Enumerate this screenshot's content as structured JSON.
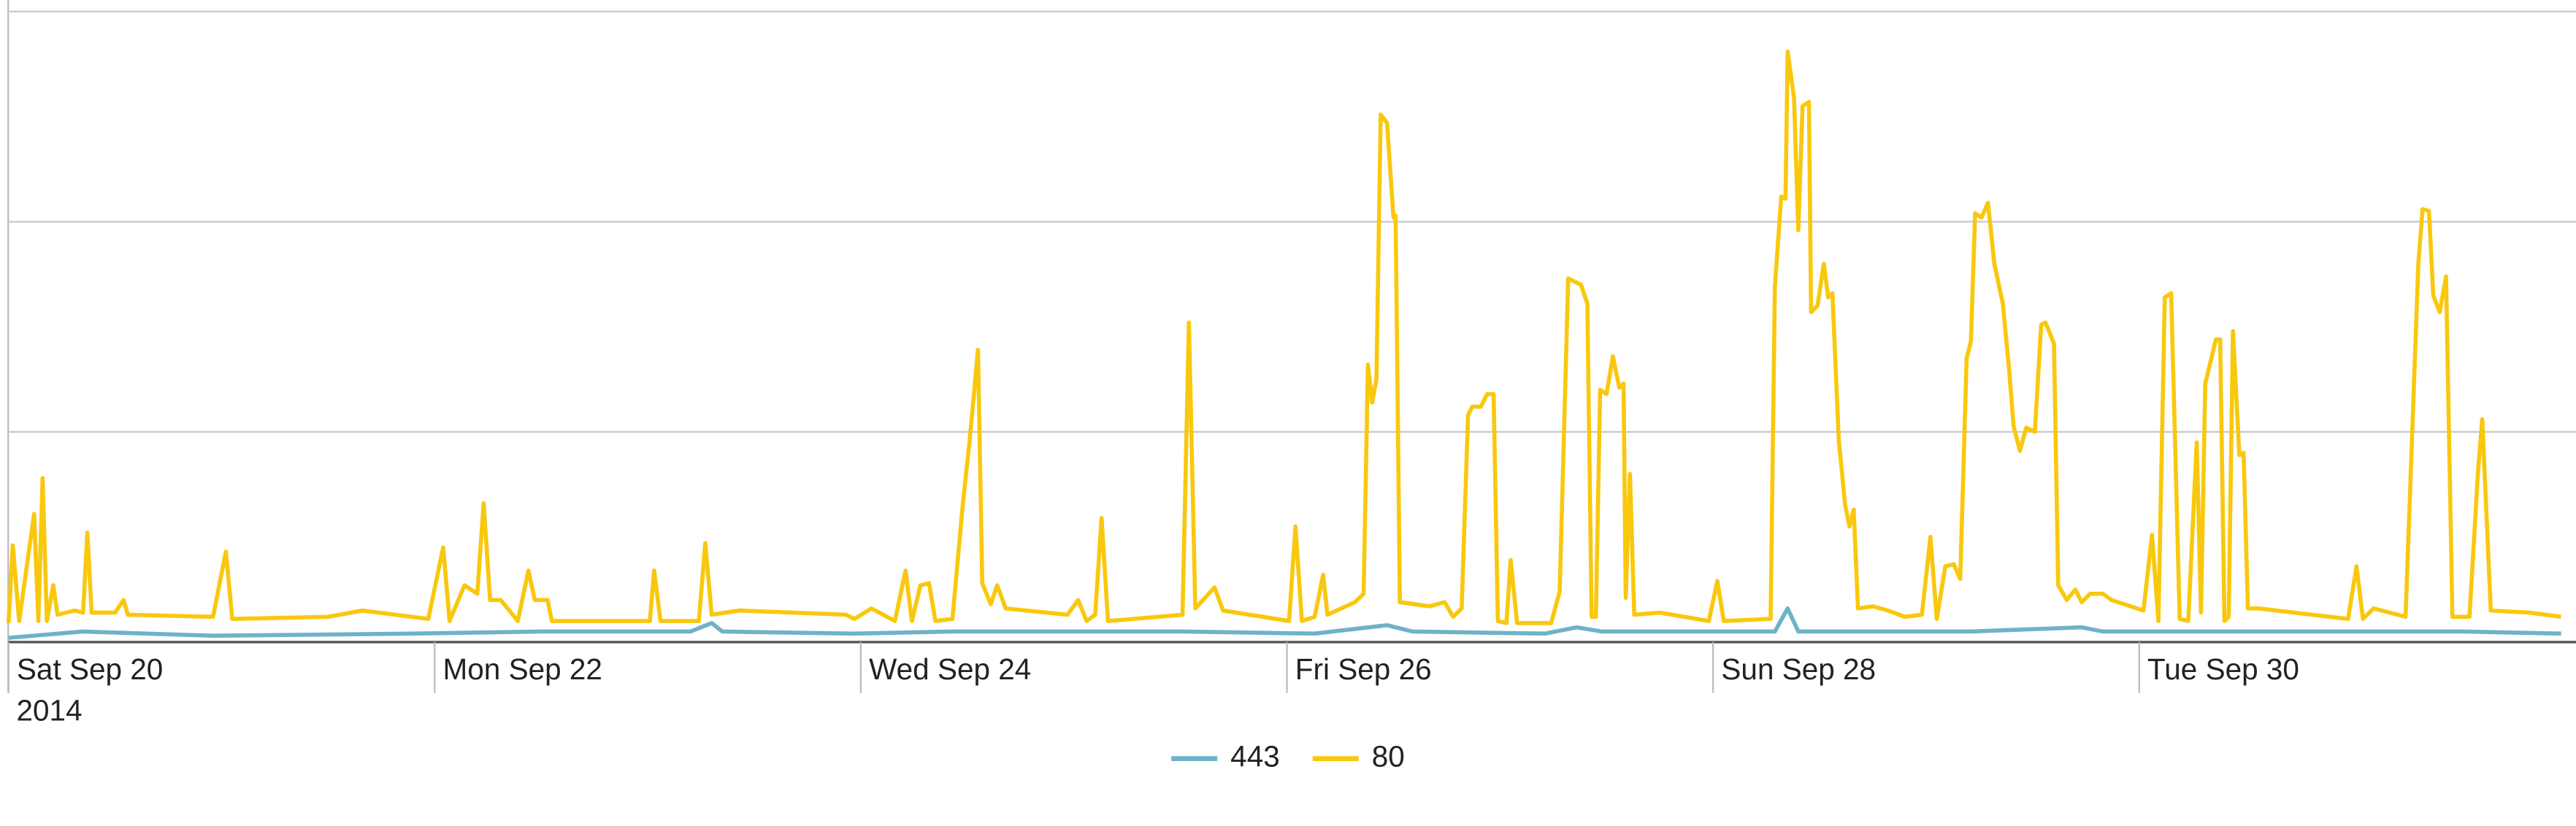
{
  "chart_data": {
    "type": "line",
    "xlim": [
      -0.04,
      12.05
    ],
    "xticks": [
      {
        "value": 0,
        "label": "Sat Sep 20"
      },
      {
        "value": 2,
        "label": "Mon Sep 22"
      },
      {
        "value": 4,
        "label": "Wed Sep 24"
      },
      {
        "value": 6,
        "label": "Fri Sep 26"
      },
      {
        "value": 8,
        "label": "Sun Sep 28"
      },
      {
        "value": 10,
        "label": "Tue Sep 30"
      }
    ],
    "x_year_label": "2014",
    "ylim": [
      0,
      3
    ],
    "yticks": [
      1,
      2,
      3
    ],
    "grid": true,
    "legend": "bottom",
    "series": [
      {
        "name": "443",
        "color": "#6db3c7",
        "x": [
          0.0,
          0.35,
          0.96,
          1.89,
          2.51,
          3.2,
          3.3,
          3.35,
          3.97,
          4.43,
          5.51,
          6.13,
          6.47,
          6.59,
          7.21,
          7.36,
          7.48,
          7.75,
          8.29,
          8.35,
          8.4,
          9.21,
          9.73,
          9.83,
          10.6,
          11.52,
          11.98
        ],
        "values": [
          0.02,
          0.05,
          0.03,
          0.04,
          0.05,
          0.05,
          0.09,
          0.05,
          0.04,
          0.05,
          0.05,
          0.04,
          0.08,
          0.05,
          0.04,
          0.07,
          0.05,
          0.05,
          0.05,
          0.16,
          0.05,
          0.05,
          0.07,
          0.05,
          0.05,
          0.05,
          0.04
        ]
      },
      {
        "name": "80",
        "color": "#f9c80e",
        "x": [
          0.0,
          0.02,
          0.05,
          0.12,
          0.14,
          0.16,
          0.18,
          0.21,
          0.23,
          0.31,
          0.35,
          0.37,
          0.39,
          0.5,
          0.54,
          0.56,
          0.96,
          1.02,
          1.05,
          1.5,
          1.66,
          1.97,
          2.04,
          2.07,
          2.14,
          2.2,
          2.23,
          2.26,
          2.31,
          2.39,
          2.44,
          2.47,
          2.53,
          2.55,
          3.01,
          3.03,
          3.06,
          3.24,
          3.27,
          3.3,
          3.43,
          3.93,
          3.97,
          4.05,
          4.16,
          4.21,
          4.24,
          4.28,
          4.32,
          4.35,
          4.43,
          4.48,
          4.51,
          4.55,
          4.57,
          4.61,
          4.64,
          4.68,
          4.97,
          5.02,
          5.06,
          5.1,
          5.13,
          5.16,
          5.51,
          5.54,
          5.57,
          5.66,
          5.7,
          6.01,
          6.04,
          6.07,
          6.13,
          6.17,
          6.19,
          6.32,
          6.36,
          6.38,
          6.4,
          6.42,
          6.44,
          6.47,
          6.5,
          6.51,
          6.53,
          6.67,
          6.74,
          6.78,
          6.82,
          6.85,
          6.87,
          6.91,
          6.94,
          6.97,
          6.99,
          7.03,
          7.05,
          7.08,
          7.24,
          7.28,
          7.32,
          7.38,
          7.41,
          7.43,
          7.45,
          7.47,
          7.5,
          7.53,
          7.56,
          7.58,
          7.59,
          7.61,
          7.63,
          7.75,
          7.98,
          8.02,
          8.05,
          8.27,
          8.29,
          8.32,
          8.34,
          8.35,
          8.38,
          8.4,
          8.42,
          8.45,
          8.46,
          8.49,
          8.52,
          8.54,
          8.56,
          8.59,
          8.62,
          8.64,
          8.66,
          8.68,
          8.75,
          8.82,
          8.9,
          8.98,
          9.02,
          9.05,
          9.09,
          9.13,
          9.16,
          9.19,
          9.21,
          9.23,
          9.26,
          9.29,
          9.32,
          9.36,
          9.39,
          9.41,
          9.44,
          9.47,
          9.51,
          9.54,
          9.56,
          9.6,
          9.62,
          9.66,
          9.7,
          9.73,
          9.77,
          9.83,
          9.87,
          10.02,
          10.06,
          10.09,
          10.12,
          10.15,
          10.19,
          10.23,
          10.27,
          10.29,
          10.31,
          10.36,
          10.38,
          10.4,
          10.42,
          10.44,
          10.47,
          10.49,
          10.51,
          10.56,
          10.98,
          11.02,
          11.05,
          11.1,
          11.25,
          11.31,
          11.33,
          11.36,
          11.38,
          11.41,
          11.44,
          11.47,
          11.55,
          11.59,
          11.61,
          11.65,
          11.83,
          11.98
        ],
        "values": [
          0.09,
          0.46,
          0.1,
          0.61,
          0.1,
          0.78,
          0.1,
          0.27,
          0.13,
          0.15,
          0.14,
          0.52,
          0.14,
          0.14,
          0.2,
          0.13,
          0.12,
          0.43,
          0.11,
          0.12,
          0.15,
          0.11,
          0.45,
          0.1,
          0.27,
          0.23,
          0.66,
          0.2,
          0.2,
          0.1,
          0.34,
          0.2,
          0.2,
          0.1,
          0.1,
          0.34,
          0.1,
          0.1,
          0.47,
          0.13,
          0.15,
          0.13,
          0.11,
          0.16,
          0.1,
          0.34,
          0.1,
          0.27,
          0.28,
          0.1,
          0.11,
          0.67,
          0.95,
          1.39,
          0.28,
          0.18,
          0.27,
          0.16,
          0.13,
          0.2,
          0.1,
          0.13,
          0.59,
          0.1,
          0.13,
          1.52,
          0.16,
          0.26,
          0.15,
          0.1,
          0.55,
          0.1,
          0.12,
          0.32,
          0.13,
          0.19,
          0.23,
          1.32,
          1.14,
          1.25,
          2.51,
          2.47,
          2.02,
          2.03,
          0.19,
          0.17,
          0.19,
          0.12,
          0.16,
          1.08,
          1.12,
          1.12,
          1.18,
          1.18,
          0.1,
          0.09,
          0.39,
          0.09,
          0.09,
          0.24,
          1.73,
          1.7,
          1.61,
          0.12,
          0.12,
          1.2,
          1.18,
          1.36,
          1.21,
          1.23,
          0.21,
          0.8,
          0.13,
          0.14,
          0.1,
          0.29,
          0.1,
          0.11,
          1.69,
          2.12,
          2.11,
          2.81,
          2.59,
          1.96,
          2.55,
          2.57,
          1.57,
          1.6,
          1.8,
          1.64,
          1.66,
          0.96,
          0.65,
          0.55,
          0.63,
          0.16,
          0.17,
          0.15,
          0.12,
          0.13,
          0.5,
          0.11,
          0.36,
          0.37,
          0.3,
          1.35,
          1.43,
          2.04,
          2.02,
          2.09,
          1.8,
          1.61,
          1.29,
          1.03,
          0.91,
          1.02,
          1.0,
          1.51,
          1.52,
          1.42,
          0.27,
          0.2,
          0.25,
          0.19,
          0.23,
          0.23,
          0.2,
          0.15,
          0.51,
          0.1,
          1.64,
          1.66,
          0.11,
          0.1,
          0.95,
          0.14,
          1.23,
          1.44,
          1.44,
          0.1,
          0.12,
          1.48,
          0.89,
          0.9,
          0.16,
          0.16,
          0.11,
          0.36,
          0.11,
          0.16,
          0.12,
          1.8,
          2.06,
          2.05,
          1.65,
          1.57,
          1.74,
          0.12,
          0.12,
          0.81,
          1.06,
          0.15,
          0.14,
          0.12
        ]
      }
    ]
  }
}
